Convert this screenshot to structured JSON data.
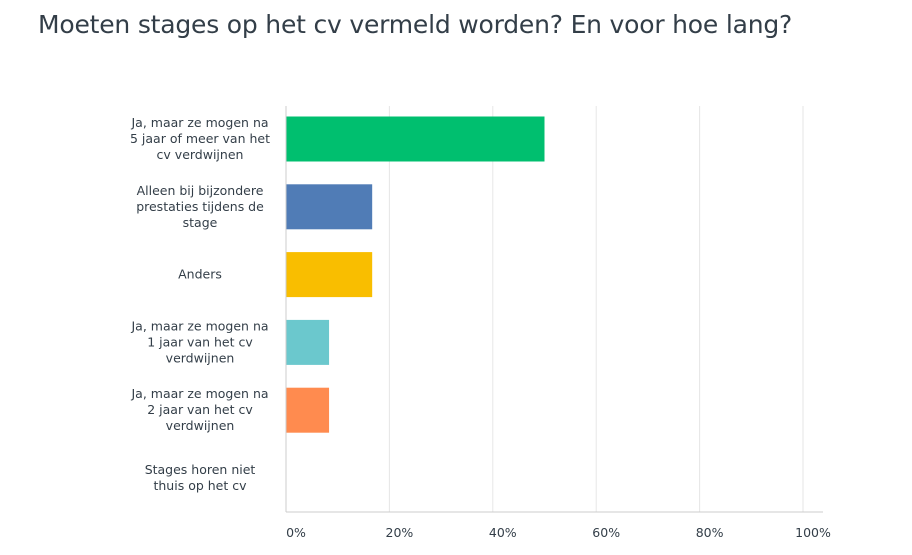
{
  "chart_data": {
    "type": "bar",
    "orientation": "horizontal",
    "title": "Moeten stages op het cv vermeld worden? En voor hoe lang?",
    "categories": [
      [
        "Ja, maar ze mogen na",
        "5 jaar of meer van het",
        "cv verdwijnen"
      ],
      [
        "Alleen bij bijzondere",
        "prestaties tijdens de",
        "stage"
      ],
      [
        "Anders"
      ],
      [
        "Ja, maar ze mogen na",
        "1 jaar van het cv",
        "verdwijnen"
      ],
      [
        "Ja, maar ze mogen na",
        "2 jaar van het cv",
        "verdwijnen"
      ],
      [
        "Stages horen niet",
        "thuis op het cv"
      ]
    ],
    "values": [
      50,
      16.67,
      16.67,
      8.33,
      8.33,
      0
    ],
    "colors": [
      "#00bf6f",
      "#507cb6",
      "#f9be00",
      "#6bc8cd",
      "#ff8b4f",
      "#999999"
    ],
    "xlim": [
      0,
      100
    ],
    "xticks": [
      0,
      20,
      40,
      60,
      80,
      100
    ],
    "xtick_labels": [
      "0%",
      "20%",
      "40%",
      "60%",
      "80%",
      "100%"
    ],
    "grid": true,
    "grid_color": "#e6e6e6",
    "axis_color": "#cccccc",
    "text_color": "#333e48"
  }
}
